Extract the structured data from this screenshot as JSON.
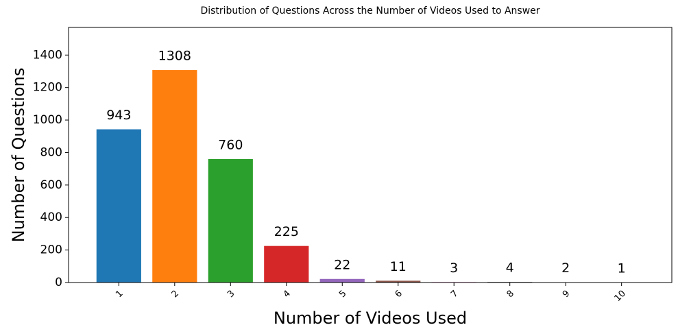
{
  "chart_data": {
    "type": "bar",
    "title": "Distribution of Questions Across the Number of Videos Used to Answer",
    "x_label": "Number of Videos Used",
    "y_label": "Number of Questions",
    "categories": [
      "1",
      "2",
      "3",
      "4",
      "5",
      "6",
      "7",
      "8",
      "9",
      "10"
    ],
    "values": [
      943,
      1308,
      760,
      225,
      22,
      11,
      3,
      4,
      2,
      1
    ],
    "colors": [
      "#1f77b4",
      "#ff7f0e",
      "#2ca02c",
      "#d62728",
      "#9467bd",
      "#8c564b",
      "#e377c2",
      "#7f7f7f",
      "#bcbd22",
      "#17becf"
    ],
    "ylim": [
      0,
      1570
    ],
    "yticks": [
      0,
      200,
      400,
      600,
      800,
      1000,
      1200,
      1400
    ],
    "grid": false
  }
}
